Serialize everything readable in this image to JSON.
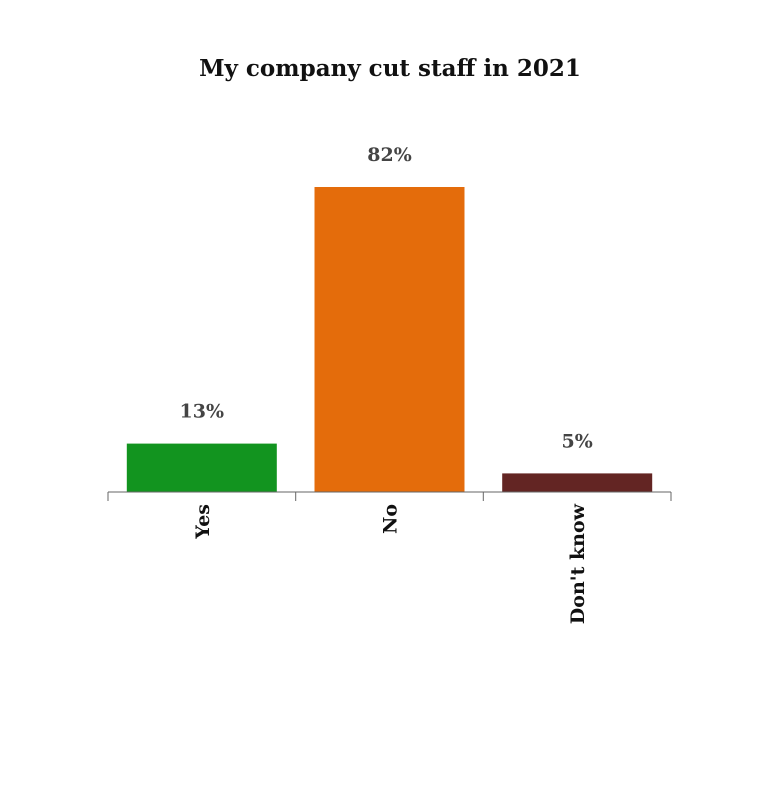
{
  "chart_data": {
    "type": "bar",
    "title": "My company cut staff in 2021",
    "xlabel": "",
    "ylabel": "",
    "categories": [
      "Yes",
      "No",
      "Don't know"
    ],
    "values": [
      13,
      82,
      5
    ],
    "data_labels": [
      "13%",
      "82%",
      "5%"
    ],
    "colors": [
      "#12941f",
      "#e46c0b",
      "#632523"
    ],
    "ylim": [
      0,
      100
    ],
    "grid": false,
    "legend": "none"
  }
}
